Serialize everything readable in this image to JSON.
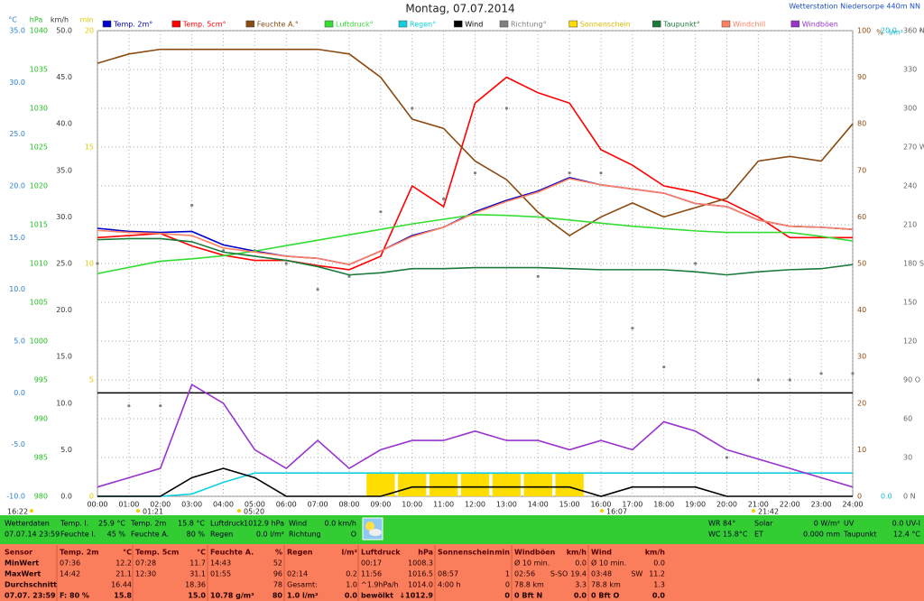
{
  "chart_data": {
    "type": "line",
    "title": "Montag, 07.07.2014",
    "station": "Wetterstation Niedersorpe 440m NN",
    "categories": [
      "00:00",
      "01:00",
      "02:00",
      "03:00",
      "04:00",
      "05:00",
      "06:00",
      "07:00",
      "08:00",
      "09:00",
      "10:00",
      "11:00",
      "12:00",
      "13:00",
      "14:00",
      "15:00",
      "16:00",
      "17:00",
      "18:00",
      "19:00",
      "20:00",
      "21:00",
      "22:00",
      "23:00",
      "24:00"
    ],
    "axes": [
      {
        "label": "°C",
        "side": "left",
        "color": "#2a7fd0",
        "lim": [
          -10,
          35
        ],
        "ticks": [
          {
            "value": -10,
            "label": "-10.0"
          },
          {
            "value": -5,
            "label": "-5.0"
          },
          {
            "value": 0,
            "label": "0.0"
          },
          {
            "value": 5,
            "label": "5.0"
          },
          {
            "value": 10,
            "label": "10.0"
          },
          {
            "value": 15,
            "label": "15.0"
          },
          {
            "value": 20,
            "label": "20.0"
          },
          {
            "value": 25,
            "label": "25.0"
          },
          {
            "value": 30,
            "label": "30.0"
          },
          {
            "value": 35,
            "label": "35.0"
          }
        ]
      },
      {
        "label": "hPa",
        "side": "left",
        "color": "#22bb22",
        "lim": [
          980,
          1040
        ],
        "ticks": [
          980,
          985,
          990,
          995,
          1000,
          1005,
          1010,
          1015,
          1020,
          1025,
          1030,
          1035,
          1040
        ]
      },
      {
        "label": "km/h",
        "side": "left",
        "color": "#333333",
        "lim": [
          0,
          50
        ],
        "ticks": [
          {
            "value": 0,
            "label": "0.0"
          },
          {
            "value": 5,
            "label": "5.0"
          },
          {
            "value": 10,
            "label": "10.0"
          },
          {
            "value": 15,
            "label": "15.0"
          },
          {
            "value": 20,
            "label": "20.0"
          },
          {
            "value": 25,
            "label": "25.0"
          },
          {
            "value": 30,
            "label": "30.0"
          },
          {
            "value": 35,
            "label": "35.0"
          },
          {
            "value": 40,
            "label": "40.0"
          },
          {
            "value": 45,
            "label": "45.0"
          },
          {
            "value": 50,
            "label": "50.0"
          }
        ]
      },
      {
        "label": "min",
        "side": "left",
        "color": "#e8c800",
        "lim": [
          0,
          20
        ],
        "ticks": [
          0,
          5,
          10,
          15,
          20
        ]
      },
      {
        "label": "%",
        "side": "right",
        "color": "#8a4a10",
        "lim": [
          0,
          100
        ],
        "ticks": [
          0,
          10,
          20,
          30,
          40,
          50,
          60,
          70,
          80,
          90,
          100
        ]
      },
      {
        "label": "l/m²",
        "side": "right",
        "color": "#10b8d0",
        "lim": [
          0,
          20
        ],
        "ticks": [
          {
            "value": 0,
            "label": "0.0"
          },
          {
            "value": 20,
            "label": "20.0"
          }
        ]
      },
      {
        "label": "°",
        "side": "right",
        "color": "#666666",
        "lim": [
          0,
          360
        ],
        "ticks": [
          {
            "value": 0,
            "label": "0 N"
          },
          30,
          60,
          {
            "value": 90,
            "label": "90 O"
          },
          120,
          150,
          {
            "value": 180,
            "label": "180 S"
          },
          210,
          240,
          {
            "value": 270,
            "label": "270 W"
          },
          300,
          330,
          {
            "value": 360,
            "label": "360 N"
          }
        ]
      }
    ],
    "grid": true,
    "grid_axis": 6,
    "reference_line": {
      "axis": 0,
      "value": 0,
      "color": "#000000"
    },
    "series": [
      {
        "name": "Temp. 2m°",
        "color": "#0000cc",
        "type": "line",
        "axis": 0,
        "values": [
          15.9,
          15.6,
          15.5,
          15.6,
          14.3,
          13.7,
          13.2,
          13.0,
          12.4,
          13.7,
          15.2,
          16.0,
          17.5,
          18.6,
          19.5,
          20.8,
          20.1,
          19.7,
          19.3,
          18.3,
          18.0,
          16.7,
          16.1,
          16.0,
          15.8
        ]
      },
      {
        "name": "Temp. 5cm°",
        "color": "#ff0000",
        "type": "line",
        "axis": 0,
        "values": [
          15.0,
          15.2,
          15.4,
          14.2,
          13.3,
          12.8,
          12.8,
          12.3,
          11.9,
          13.2,
          20.0,
          18.0,
          28.0,
          30.5,
          29.0,
          28.0,
          23.5,
          22.0,
          20.0,
          19.4,
          18.5,
          17.0,
          15.0,
          15.0,
          15.0
        ]
      },
      {
        "name": "Feuchte A.°",
        "color": "#8a4a10",
        "type": "line",
        "axis": 4,
        "values": [
          93,
          95,
          96,
          96,
          96,
          96,
          96,
          96,
          95,
          90,
          81,
          79,
          72,
          68,
          61,
          56,
          60,
          63,
          60,
          62,
          64,
          72,
          73,
          72,
          80
        ]
      },
      {
        "name": "Luftdruck°",
        "color": "#33dd33",
        "type": "line",
        "axis": 1,
        "values": [
          1008.7,
          1009.5,
          1010.3,
          1010.6,
          1011.0,
          1011.6,
          1012.3,
          1013.0,
          1013.7,
          1014.4,
          1015.1,
          1015.7,
          1016.3,
          1016.2,
          1016.0,
          1015.6,
          1015.2,
          1014.8,
          1014.5,
          1014.2,
          1014.0,
          1014.0,
          1014.0,
          1013.5,
          1012.9
        ]
      },
      {
        "name": "Regen°",
        "color": "#10d0e0",
        "type": "line",
        "axis": 5,
        "values": [
          0,
          0,
          0,
          0.1,
          0.6,
          1.0,
          1.0,
          1.0,
          1.0,
          1.0,
          1.0,
          1.0,
          1.0,
          1.0,
          1.0,
          1.0,
          1.0,
          1.0,
          1.0,
          1.0,
          1.0,
          1.0,
          1.0,
          1.0,
          1.0
        ]
      },
      {
        "name": "Wind",
        "color": "#000000",
        "type": "line",
        "axis": 2,
        "values": [
          0,
          0,
          0,
          2,
          3,
          2,
          0,
          0,
          0,
          0,
          1,
          1,
          1,
          1,
          1,
          1,
          0,
          1,
          1,
          1,
          0,
          0,
          0,
          0,
          0
        ]
      },
      {
        "name": "Richtung°",
        "color": "#808080",
        "type": "scatter",
        "axis": 6,
        "values": [
          180,
          70,
          70,
          225,
          190,
          190,
          180,
          160,
          170,
          220,
          300,
          230,
          250,
          300,
          170,
          250,
          250,
          130,
          100,
          180,
          30,
          90,
          90,
          95,
          95
        ]
      },
      {
        "name": "Sonnenschein",
        "color": "#ffdd00",
        "type": "bar",
        "axis": 3,
        "values": [
          0,
          0,
          0,
          0,
          0,
          0,
          0,
          0,
          0,
          1,
          1,
          1,
          1,
          1,
          1,
          1,
          0,
          0,
          0,
          0,
          0,
          0,
          0,
          0,
          0
        ]
      },
      {
        "name": "Taupunkt°",
        "color": "#1a7a3a",
        "type": "line",
        "axis": 0,
        "values": [
          14.8,
          14.9,
          14.9,
          14.6,
          13.6,
          13.2,
          12.8,
          12.2,
          11.4,
          11.6,
          12.0,
          12.0,
          12.1,
          12.1,
          12.1,
          12.0,
          11.9,
          11.9,
          11.9,
          11.7,
          11.4,
          11.7,
          11.9,
          12.0,
          12.4
        ]
      },
      {
        "name": "Windchill",
        "color": "#ff8060",
        "type": "line",
        "axis": 0,
        "values": [
          15.7,
          15.5,
          15.4,
          15.2,
          14.0,
          13.6,
          13.2,
          13.0,
          12.4,
          13.7,
          15.1,
          16.0,
          17.4,
          18.5,
          19.4,
          20.7,
          20.1,
          19.7,
          19.3,
          18.3,
          18.0,
          16.7,
          16.1,
          16.0,
          15.8
        ]
      },
      {
        "name": "Windböen",
        "color": "#9933cc",
        "type": "line",
        "axis": 2,
        "values": [
          1,
          2,
          3,
          12,
          10,
          5,
          3,
          6,
          3,
          5,
          6,
          6,
          7,
          6,
          6,
          5,
          6,
          5,
          8,
          7,
          5,
          4,
          3,
          2,
          1
        ]
      }
    ],
    "annotations": [
      "16:22",
      "01:21",
      "05:20",
      "16:07",
      "21:42"
    ]
  },
  "current": {
    "rows": [
      [
        [
          "Wetterdaten"
        ],
        [
          "Temp. I.",
          "25.9 °C"
        ],
        [
          "Temp. 2m",
          "15.8 °C"
        ],
        [
          "Luftdruck",
          "1012.9 hPa"
        ],
        [
          "Wind",
          "0.0 km/h"
        ],
        [
          "WR 84°"
        ],
        [
          "Solar",
          "0 W/m²"
        ],
        [
          "UV",
          "0.0 UV-I"
        ]
      ],
      [
        [
          "07.07.14 23:59"
        ],
        [
          "Feuchte I.",
          "45 %"
        ],
        [
          "Feuchte A.",
          "80 %"
        ],
        [
          "Regen",
          "0.0 l/m²"
        ],
        [
          "Richtung",
          "O"
        ],
        [
          "WC 15.8°C"
        ],
        [
          "ET",
          "0.000 mm"
        ],
        [
          "Taupunkt",
          "12.4 °C"
        ]
      ]
    ]
  },
  "table": {
    "header": [
      [
        "Sensor"
      ],
      [
        "Temp. 2m",
        "°C"
      ],
      [
        "Temp. 5cm",
        "°C"
      ],
      [
        "Feuchte A.",
        "%"
      ],
      [
        "Regen",
        "l/m²"
      ],
      [
        "Luftdruck",
        "hPa"
      ],
      [
        "Sonnenschein",
        "min"
      ],
      [
        "Windböen",
        "km/h"
      ],
      [
        "Wind",
        "km/h"
      ]
    ],
    "rows": [
      [
        [
          "MinWert"
        ],
        [
          "07:36",
          "12.2"
        ],
        [
          "07:28",
          "11.7"
        ],
        [
          "14:43",
          "52"
        ],
        [],
        [
          "00:17",
          "1008.3"
        ],
        [],
        [
          "Ø 10 min.",
          "0.0"
        ],
        [
          "Ø 10 min.",
          "0.0"
        ]
      ],
      [
        [
          "MaxWert"
        ],
        [
          "14:42",
          "21.1"
        ],
        [
          "12:30",
          "31.1"
        ],
        [
          "01:55",
          "96"
        ],
        [
          "02:14",
          "0.2"
        ],
        [
          "11:56",
          "1016.5"
        ],
        [
          "08:57",
          "1"
        ],
        [
          "02:56",
          "S-SO",
          "19.4"
        ],
        [
          "03:48",
          "SW",
          "11.2"
        ]
      ],
      [
        [
          "Durchschnitt"
        ],
        [
          "16.44"
        ],
        [
          "18.36"
        ],
        [
          "78"
        ],
        [
          "Gesamt:",
          "1.0"
        ],
        [
          "^1.9hPa/h",
          "1014.0"
        ],
        [
          "4:00 h",
          "0"
        ],
        [
          "78.8 km",
          "3.3"
        ],
        [
          "78.8 km",
          "1.3"
        ]
      ],
      [
        [
          "07.07. 23:59"
        ],
        [
          "F: 80 %",
          "15.8"
        ],
        [
          "15.0"
        ],
        [
          "10.78 g/m³",
          "80"
        ],
        [
          "1.0 l/m²",
          "0.0"
        ],
        [
          "bewölkt",
          "↓1012.9"
        ],
        [
          "0"
        ],
        [
          "0 Bft N",
          "0.0"
        ],
        [
          "0 Bft O",
          "0.0"
        ]
      ]
    ]
  }
}
